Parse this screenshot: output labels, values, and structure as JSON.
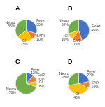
{
  "chart_data": [
    {
      "type": "pie",
      "title": "A",
      "categories": [
        "Fever",
        "SARI",
        "GI",
        "Neuro"
      ],
      "values": [
        30,
        10,
        25,
        35
      ],
      "value_labels": [
        "30%",
        "10%",
        "25%",
        "35%"
      ],
      "colors": [
        "#4472c4",
        "#ed7d31",
        "#ffc000",
        "#70ad47"
      ],
      "data_labels": true
    },
    {
      "type": "pie",
      "title": "B",
      "categories": [
        "Fever",
        "SARI",
        "GI",
        "Neuro"
      ],
      "values": [
        45,
        15,
        10,
        30
      ],
      "value_labels": [
        "45%",
        "15%",
        "10%",
        "30%"
      ],
      "colors": [
        "#4472c4",
        "#ed7d31",
        "#ffc000",
        "#70ad47"
      ],
      "data_labels": true
    },
    {
      "type": "pie",
      "title": "C",
      "categories": [
        "Fever",
        "SARI",
        "GI",
        "Neuro"
      ],
      "values": [
        12,
        10,
        8,
        70
      ],
      "value_labels": [
        "12%",
        "10%",
        "8%",
        "70%"
      ],
      "colors": [
        "#4472c4",
        "#ed7d31",
        "#ffc000",
        "#70ad47"
      ],
      "data_labels": true
    },
    {
      "type": "pie",
      "title": "D",
      "categories": [
        "Fever",
        "SARI",
        "GI",
        "Neuro"
      ],
      "values": [
        22,
        10,
        40,
        28
      ],
      "value_labels": [
        "22%",
        "10%",
        "40%",
        "28%"
      ],
      "colors": [
        "#4472c4",
        "#ed7d31",
        "#ffc000",
        "#70ad47"
      ],
      "data_labels": true
    }
  ]
}
